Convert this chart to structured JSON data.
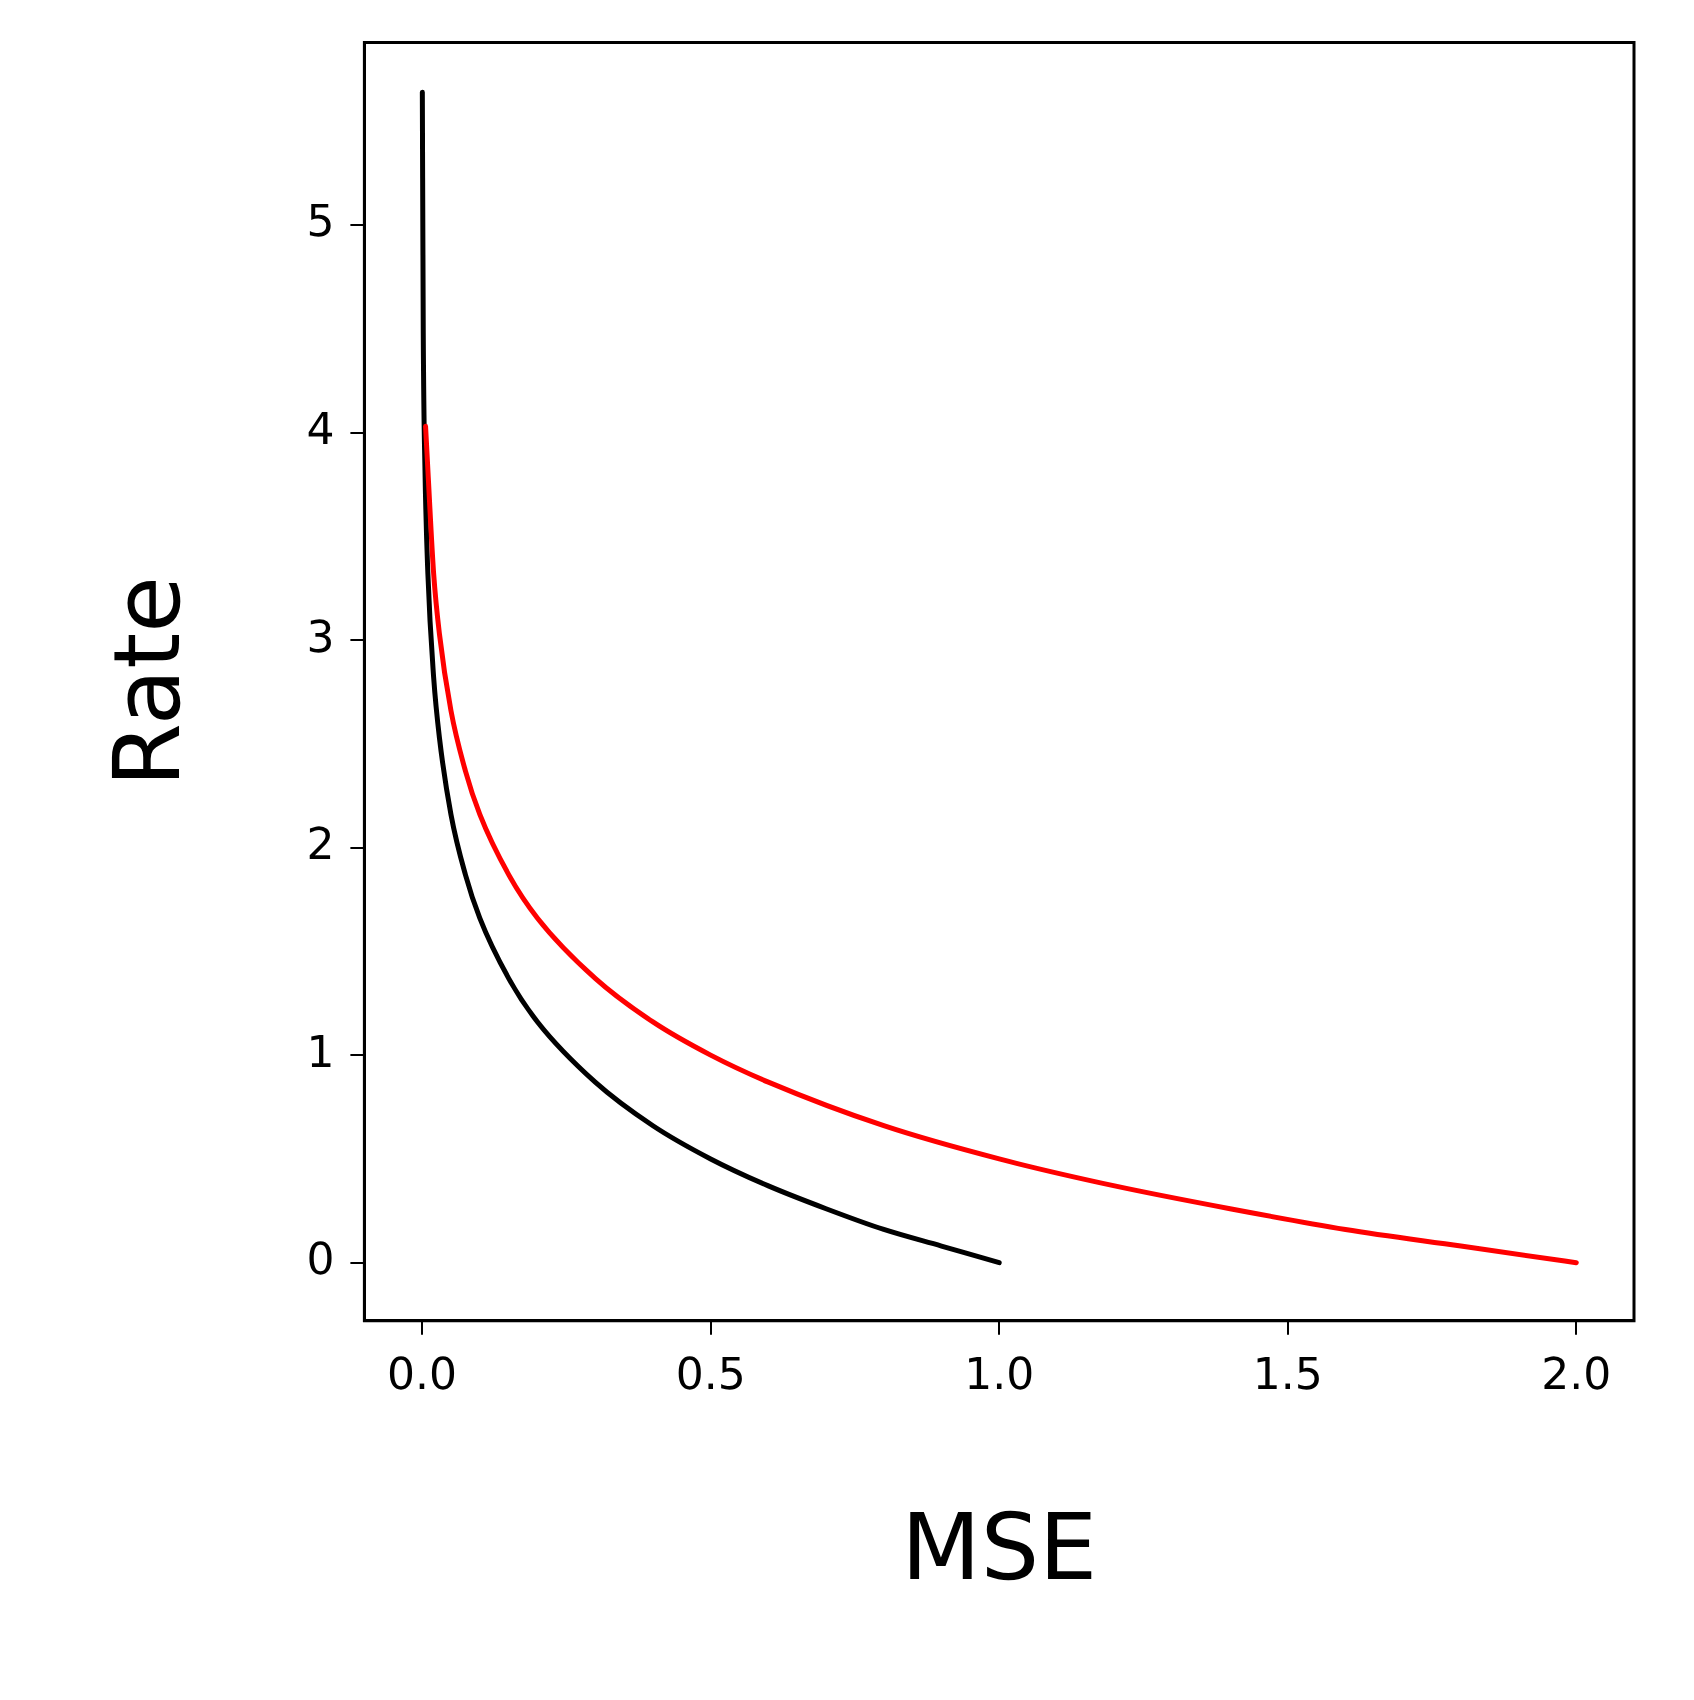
{
  "chart_data": {
    "type": "line",
    "xlabel": "MSE",
    "ylabel": "Rate",
    "xlim": [
      -0.1,
      2.1
    ],
    "ylim": [
      -0.28,
      5.88
    ],
    "xticks": [
      {
        "value": 0,
        "label": "0.0"
      },
      0.5,
      {
        "value": 1,
        "label": "1.0"
      },
      1.5,
      {
        "value": 2,
        "label": "2.0"
      }
    ],
    "yticks": [
      0,
      1,
      2,
      3,
      4,
      5
    ],
    "grid": false,
    "legend": false,
    "marker": "none",
    "line_style": "solid",
    "series": [
      {
        "color": "#ff0000",
        "x": [
          0.006,
          0.01,
          0.02,
          0.03,
          0.05,
          0.075,
          0.1,
          0.15,
          0.2,
          0.3,
          0.4,
          0.5,
          0.6,
          0.8,
          1.0,
          1.2,
          1.4,
          1.6,
          1.8,
          2.0
        ],
        "values": [
          4.03,
          3.82,
          3.32,
          3.03,
          2.66,
          2.37,
          2.16,
          1.87,
          1.66,
          1.37,
          1.16,
          1.0,
          0.87,
          0.66,
          0.5,
          0.37,
          0.26,
          0.16,
          0.08,
          0
        ]
      },
      {
        "color": "#000000",
        "x": [
          0.0004,
          0.002,
          0.005,
          0.01,
          0.02,
          0.03,
          0.05,
          0.075,
          0.1,
          0.15,
          0.2,
          0.3,
          0.4,
          0.5,
          0.6,
          0.7,
          0.8,
          0.9,
          1.0
        ],
        "values": [
          5.64,
          4.48,
          3.82,
          3.32,
          2.82,
          2.53,
          2.16,
          1.87,
          1.66,
          1.37,
          1.16,
          0.87,
          0.66,
          0.5,
          0.37,
          0.26,
          0.16,
          0.08,
          0
        ]
      }
    ]
  }
}
